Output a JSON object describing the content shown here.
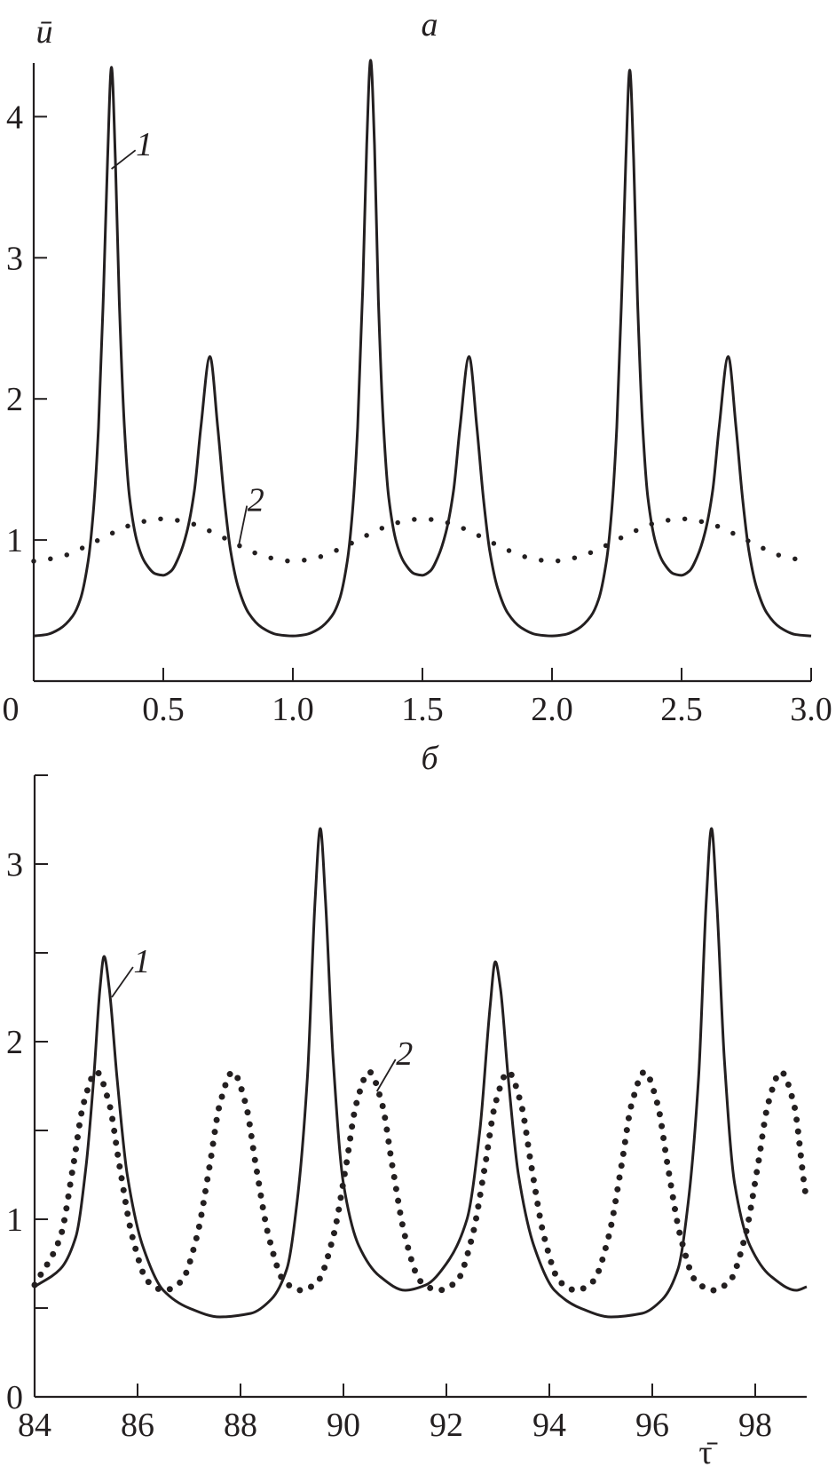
{
  "colors": {
    "ink": "#231f20",
    "background": "#ffffff"
  },
  "chart_data": [
    {
      "type": "line",
      "title": "а",
      "xlabel": "",
      "ylabel": "ū",
      "xlim": [
        0,
        3.0
      ],
      "ylim": [
        0,
        4.38
      ],
      "xticks": [
        0,
        0.5,
        1.0,
        1.5,
        2.0,
        2.5,
        3.0
      ],
      "xtick_labels": [
        "0",
        "0.5",
        "1.0",
        "1.5",
        "2.0",
        "2.5",
        "3.0"
      ],
      "yticks": [
        1,
        2,
        3,
        4
      ],
      "ytick_labels": [
        "1",
        "2",
        "3",
        "4"
      ],
      "minor_yticks": [],
      "grid": false,
      "series": [
        {
          "name": "1",
          "style": "solid",
          "points": [
            [
              0,
              0.32
            ],
            [
              0.05,
              0.33
            ],
            [
              0.1,
              0.37
            ],
            [
              0.15,
              0.46
            ],
            [
              0.18,
              0.58
            ],
            [
              0.21,
              0.85
            ],
            [
              0.23,
              1.2
            ],
            [
              0.25,
              1.8
            ],
            [
              0.27,
              2.8
            ],
            [
              0.285,
              3.7
            ],
            [
              0.3,
              4.35
            ],
            [
              0.315,
              3.7
            ],
            [
              0.33,
              2.7
            ],
            [
              0.35,
              1.8
            ],
            [
              0.37,
              1.3
            ],
            [
              0.4,
              0.98
            ],
            [
              0.43,
              0.84
            ],
            [
              0.47,
              0.76
            ],
            [
              0.5,
              0.75
            ],
            [
              0.53,
              0.78
            ],
            [
              0.56,
              0.88
            ],
            [
              0.59,
              1.05
            ],
            [
              0.62,
              1.35
            ],
            [
              0.645,
              1.8
            ],
            [
              0.68,
              2.3
            ],
            [
              0.71,
              1.8
            ],
            [
              0.735,
              1.3
            ],
            [
              0.76,
              0.92
            ],
            [
              0.79,
              0.66
            ],
            [
              0.83,
              0.48
            ],
            [
              0.88,
              0.38
            ],
            [
              0.94,
              0.33
            ],
            [
              1.0,
              0.32
            ],
            [
              1.05,
              0.33
            ],
            [
              1.1,
              0.37
            ],
            [
              1.15,
              0.46
            ],
            [
              1.18,
              0.58
            ],
            [
              1.21,
              0.85
            ],
            [
              1.23,
              1.2
            ],
            [
              1.25,
              1.8
            ],
            [
              1.27,
              2.8
            ],
            [
              1.285,
              3.8
            ],
            [
              1.3,
              4.4
            ],
            [
              1.315,
              3.8
            ],
            [
              1.33,
              2.7
            ],
            [
              1.35,
              1.8
            ],
            [
              1.37,
              1.3
            ],
            [
              1.4,
              0.98
            ],
            [
              1.43,
              0.84
            ],
            [
              1.47,
              0.76
            ],
            [
              1.5,
              0.75
            ],
            [
              1.53,
              0.78
            ],
            [
              1.56,
              0.88
            ],
            [
              1.59,
              1.05
            ],
            [
              1.62,
              1.35
            ],
            [
              1.645,
              1.8
            ],
            [
              1.68,
              2.3
            ],
            [
              1.71,
              1.8
            ],
            [
              1.735,
              1.3
            ],
            [
              1.76,
              0.92
            ],
            [
              1.79,
              0.66
            ],
            [
              1.83,
              0.48
            ],
            [
              1.88,
              0.38
            ],
            [
              1.94,
              0.33
            ],
            [
              2.0,
              0.32
            ],
            [
              2.05,
              0.33
            ],
            [
              2.1,
              0.37
            ],
            [
              2.15,
              0.46
            ],
            [
              2.18,
              0.58
            ],
            [
              2.21,
              0.85
            ],
            [
              2.23,
              1.2
            ],
            [
              2.25,
              1.8
            ],
            [
              2.27,
              2.8
            ],
            [
              2.285,
              3.7
            ],
            [
              2.3,
              4.33
            ],
            [
              2.315,
              3.7
            ],
            [
              2.33,
              2.7
            ],
            [
              2.35,
              1.8
            ],
            [
              2.37,
              1.3
            ],
            [
              2.4,
              0.98
            ],
            [
              2.43,
              0.84
            ],
            [
              2.47,
              0.76
            ],
            [
              2.5,
              0.75
            ],
            [
              2.53,
              0.78
            ],
            [
              2.56,
              0.88
            ],
            [
              2.59,
              1.05
            ],
            [
              2.62,
              1.35
            ],
            [
              2.645,
              1.8
            ],
            [
              2.68,
              2.3
            ],
            [
              2.71,
              1.8
            ],
            [
              2.735,
              1.3
            ],
            [
              2.76,
              0.92
            ],
            [
              2.79,
              0.66
            ],
            [
              2.83,
              0.48
            ],
            [
              2.88,
              0.38
            ],
            [
              2.94,
              0.33
            ],
            [
              3.0,
              0.32
            ]
          ]
        },
        {
          "name": "2",
          "style": "dotted",
          "points": [
            [
              0,
              0.85
            ],
            [
              0.1,
              0.879
            ],
            [
              0.2,
              0.954
            ],
            [
              0.3,
              1.046
            ],
            [
              0.4,
              1.121
            ],
            [
              0.5,
              1.15
            ],
            [
              0.6,
              1.121
            ],
            [
              0.7,
              1.046
            ],
            [
              0.8,
              0.954
            ],
            [
              0.9,
              0.879
            ],
            [
              1.0,
              0.85
            ],
            [
              1.1,
              0.879
            ],
            [
              1.2,
              0.954
            ],
            [
              1.3,
              1.046
            ],
            [
              1.4,
              1.121
            ],
            [
              1.5,
              1.15
            ],
            [
              1.6,
              1.121
            ],
            [
              1.7,
              1.046
            ],
            [
              1.8,
              0.954
            ],
            [
              1.9,
              0.879
            ],
            [
              2.0,
              0.85
            ],
            [
              2.1,
              0.879
            ],
            [
              2.2,
              0.954
            ],
            [
              2.3,
              1.046
            ],
            [
              2.4,
              1.121
            ],
            [
              2.5,
              1.15
            ],
            [
              2.6,
              1.121
            ],
            [
              2.7,
              1.046
            ],
            [
              2.8,
              0.954
            ],
            [
              2.9,
              0.879
            ],
            [
              3.0,
              0.85
            ]
          ]
        }
      ],
      "annotations": [
        {
          "text": "1",
          "at": [
            0.3,
            3.63
          ],
          "label_at": [
            0.42,
            3.8
          ]
        },
        {
          "text": "2",
          "at": [
            0.79,
            0.95
          ],
          "label_at": [
            0.85,
            1.28
          ]
        }
      ]
    },
    {
      "type": "line",
      "title": "б",
      "xlabel": "τ̄",
      "ylabel": "",
      "xlim": [
        84,
        99
      ],
      "ylim": [
        0,
        3.5
      ],
      "xticks": [
        84,
        86,
        88,
        90,
        92,
        94,
        96,
        98
      ],
      "xtick_labels": [
        "84",
        "86",
        "88",
        "90",
        "92",
        "94",
        "96",
        "98"
      ],
      "yticks": [
        0,
        1,
        2,
        3
      ],
      "ytick_labels": [
        "0",
        "1",
        "2",
        "3"
      ],
      "minor_yticks": [
        0.5,
        1.5,
        2.5,
        3.5
      ],
      "grid": false,
      "series": [
        {
          "name": "1",
          "style": "solid",
          "points": [
            [
              84,
              0.62
            ],
            [
              84.5,
              0.72
            ],
            [
              84.8,
              0.9
            ],
            [
              85.0,
              1.3
            ],
            [
              85.15,
              1.8
            ],
            [
              85.27,
              2.3
            ],
            [
              85.35,
              2.48
            ],
            [
              85.45,
              2.3
            ],
            [
              85.6,
              1.8
            ],
            [
              85.8,
              1.25
            ],
            [
              86.1,
              0.85
            ],
            [
              86.5,
              0.6
            ],
            [
              87,
              0.5
            ],
            [
              87.6,
              0.45
            ],
            [
              88.2,
              0.47
            ],
            [
              88.6,
              0.55
            ],
            [
              88.9,
              0.72
            ],
            [
              89.1,
              1.1
            ],
            [
              89.3,
              1.8
            ],
            [
              89.45,
              2.8
            ],
            [
              89.55,
              3.2
            ],
            [
              89.65,
              2.8
            ],
            [
              89.8,
              1.9
            ],
            [
              90,
              1.2
            ],
            [
              90.3,
              0.85
            ],
            [
              90.7,
              0.68
            ],
            [
              91.2,
              0.6
            ],
            [
              91.6,
              0.63
            ],
            [
              92,
              0.75
            ],
            [
              92.4,
              1.0
            ],
            [
              92.65,
              1.5
            ],
            [
              92.85,
              2.2
            ],
            [
              92.95,
              2.45
            ],
            [
              93.05,
              2.3
            ],
            [
              93.2,
              1.8
            ],
            [
              93.4,
              1.25
            ],
            [
              93.7,
              0.85
            ],
            [
              94.1,
              0.6
            ],
            [
              94.6,
              0.5
            ],
            [
              95.2,
              0.45
            ],
            [
              95.8,
              0.47
            ],
            [
              96.2,
              0.55
            ],
            [
              96.5,
              0.72
            ],
            [
              96.7,
              1.1
            ],
            [
              96.9,
              1.8
            ],
            [
              97.05,
              2.8
            ],
            [
              97.15,
              3.2
            ],
            [
              97.25,
              2.8
            ],
            [
              97.4,
              1.9
            ],
            [
              97.6,
              1.2
            ],
            [
              97.9,
              0.85
            ],
            [
              98.3,
              0.68
            ],
            [
              98.8,
              0.6
            ],
            [
              99,
              0.62
            ]
          ]
        },
        {
          "name": "2",
          "style": "dotted",
          "points": [
            [
              84,
              0.63
            ],
            [
              84.5,
              0.9
            ],
            [
              84.75,
              1.3
            ],
            [
              84.95,
              1.65
            ],
            [
              85.2,
              1.83
            ],
            [
              85.45,
              1.65
            ],
            [
              85.65,
              1.3
            ],
            [
              85.9,
              0.9
            ],
            [
              86.2,
              0.65
            ],
            [
              86.52,
              0.6
            ],
            [
              86.85,
              0.65
            ],
            [
              87.15,
              0.9
            ],
            [
              87.4,
              1.3
            ],
            [
              87.6,
              1.65
            ],
            [
              87.85,
              1.83
            ],
            [
              88.1,
              1.65
            ],
            [
              88.3,
              1.3
            ],
            [
              88.55,
              0.9
            ],
            [
              88.85,
              0.65
            ],
            [
              89.18,
              0.6
            ],
            [
              89.5,
              0.65
            ],
            [
              89.8,
              0.9
            ],
            [
              90.05,
              1.3
            ],
            [
              90.25,
              1.65
            ],
            [
              90.5,
              1.83
            ],
            [
              90.75,
              1.65
            ],
            [
              90.95,
              1.3
            ],
            [
              91.2,
              0.9
            ],
            [
              91.5,
              0.65
            ],
            [
              91.85,
              0.6
            ],
            [
              92.2,
              0.65
            ],
            [
              92.5,
              0.9
            ],
            [
              92.75,
              1.3
            ],
            [
              92.95,
              1.65
            ],
            [
              93.2,
              1.83
            ],
            [
              93.45,
              1.65
            ],
            [
              93.65,
              1.3
            ],
            [
              93.9,
              0.9
            ],
            [
              94.2,
              0.65
            ],
            [
              94.52,
              0.6
            ],
            [
              94.85,
              0.65
            ],
            [
              95.15,
              0.9
            ],
            [
              95.4,
              1.3
            ],
            [
              95.6,
              1.65
            ],
            [
              95.85,
              1.83
            ],
            [
              96.1,
              1.65
            ],
            [
              96.3,
              1.3
            ],
            [
              96.55,
              0.9
            ],
            [
              96.85,
              0.65
            ],
            [
              97.18,
              0.6
            ],
            [
              97.5,
              0.65
            ],
            [
              97.8,
              0.9
            ],
            [
              98.05,
              1.3
            ],
            [
              98.25,
              1.65
            ],
            [
              98.5,
              1.83
            ],
            [
              98.75,
              1.65
            ],
            [
              98.95,
              1.2
            ],
            [
              99,
              1.1
            ]
          ]
        }
      ],
      "annotations": [
        {
          "text": "1",
          "at": [
            85.5,
            2.25
          ],
          "label_at": [
            86.05,
            2.45
          ]
        },
        {
          "text": "2",
          "at": [
            90.65,
            1.72
          ],
          "label_at": [
            91.15,
            1.93
          ]
        }
      ]
    }
  ]
}
